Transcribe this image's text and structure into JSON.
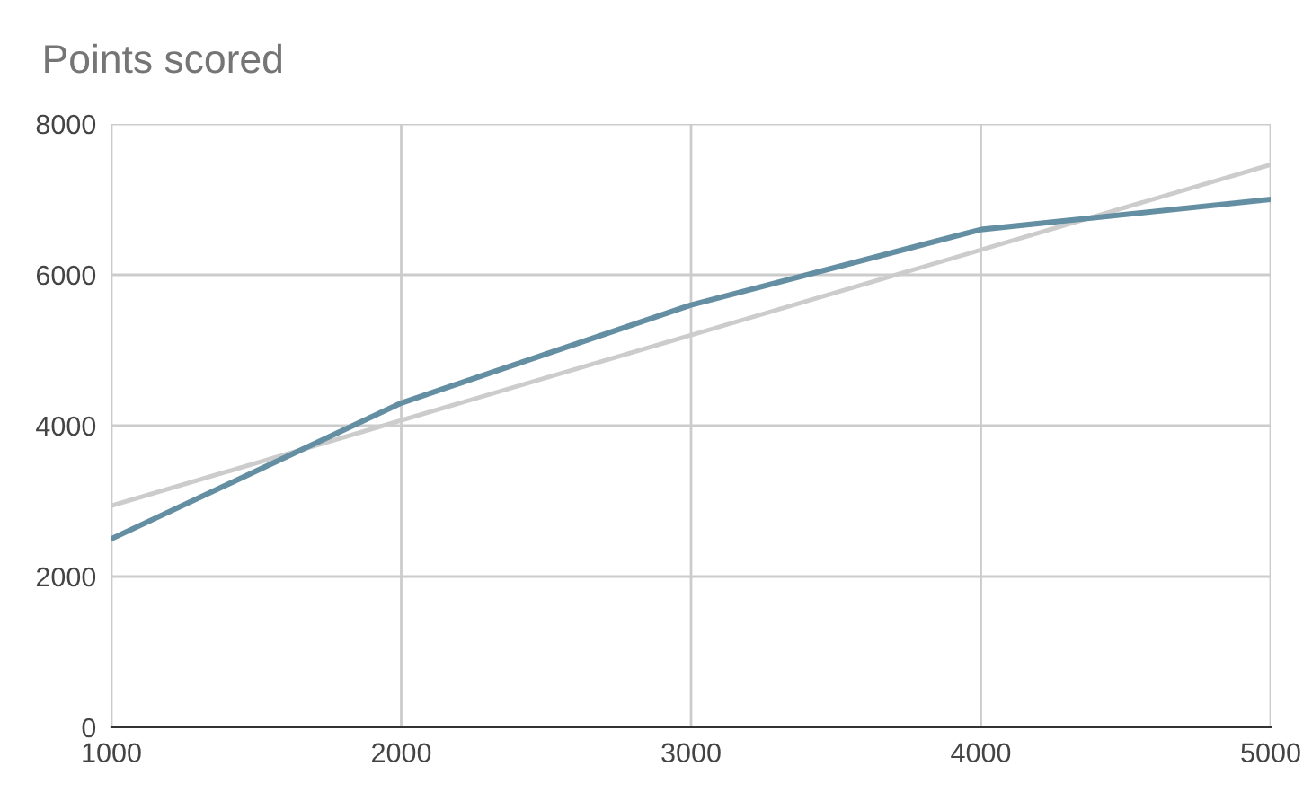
{
  "chart_data": {
    "type": "line",
    "title": "Points scored",
    "x": [
      1000,
      2000,
      3000,
      4000,
      5000
    ],
    "series": [
      {
        "color": "#648fa3",
        "values": [
          2500,
          4300,
          5600,
          6600,
          7000
        ]
      },
      {
        "type": "line",
        "color": "#cccccc",
        "x": [
          1000,
          5000
        ],
        "values": [
          2940,
          7460
        ]
      }
    ],
    "xlim": [
      1000,
      5000
    ],
    "xticks": [
      1000,
      2000,
      3000,
      4000,
      5000
    ],
    "ylim": [
      0,
      8000
    ],
    "yticks": [
      0,
      2000,
      4000,
      6000,
      8000
    ],
    "grid": true,
    "marker": "none",
    "line_style": "solid"
  }
}
